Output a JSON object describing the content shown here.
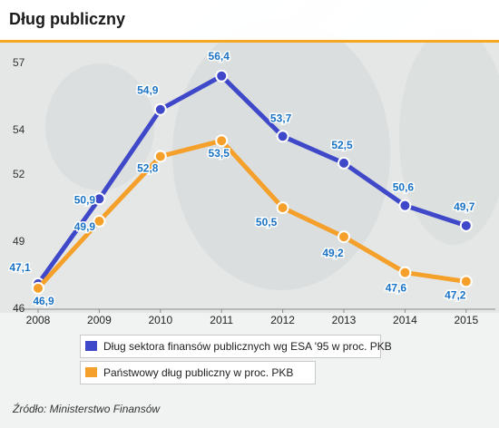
{
  "title": "Dług publiczny",
  "source": "Źródło: Ministerstwo Finansów",
  "chart_data": {
    "type": "line",
    "x": [
      "2008",
      "2009",
      "2010",
      "2011",
      "2012",
      "2013",
      "2014",
      "2015"
    ],
    "yticks": [
      "46",
      "49",
      "52",
      "54",
      "57"
    ],
    "ylim": [
      46,
      57
    ],
    "grid": false,
    "legend_placement": "bottom-left",
    "series": [
      {
        "name": "Dług sektora finansów publicznych wg ESA '95 w proc. PKB",
        "color": "#3f48c8",
        "values": [
          47.1,
          50.9,
          54.9,
          56.4,
          53.7,
          52.5,
          50.6,
          49.7
        ],
        "labels": [
          "47,1",
          "50,9",
          "54,9",
          "56,4",
          "53,7",
          "52,5",
          "50,6",
          "49,7"
        ]
      },
      {
        "name": "Państwowy dług publiczny w proc. PKB",
        "color": "#f5a02a",
        "values": [
          46.9,
          49.9,
          52.8,
          53.5,
          50.5,
          49.2,
          47.6,
          47.2
        ],
        "labels": [
          "46,9",
          "49,9",
          "52,8",
          "53,5",
          "50,5",
          "49,2",
          "47,6",
          "47,2"
        ]
      }
    ],
    "label_color": "#1a73c4"
  }
}
